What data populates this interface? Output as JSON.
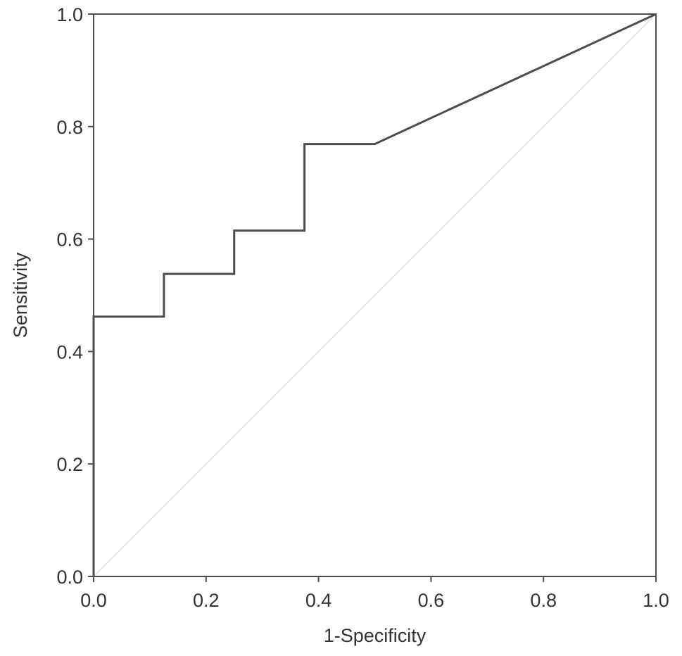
{
  "chart_data": {
    "type": "line",
    "xlabel": "1-Specificity",
    "ylabel": "Sensitivity",
    "xlim": [
      0.0,
      1.0
    ],
    "ylim": [
      0.0,
      1.0
    ],
    "x_ticks": [
      "0.0",
      "0.2",
      "0.4",
      "0.6",
      "0.8",
      "1.0"
    ],
    "y_ticks": [
      "0.0",
      "0.2",
      "0.4",
      "0.6",
      "0.8",
      "1.0"
    ],
    "grid": false,
    "legend": "none",
    "series": [
      {
        "role": "roc-curve",
        "color": "#4d4d4d",
        "x": [
          0.0,
          0.0,
          0.125,
          0.125,
          0.25,
          0.25,
          0.375,
          0.375,
          0.5,
          1.0
        ],
        "y": [
          0.0,
          0.462,
          0.462,
          0.538,
          0.538,
          0.615,
          0.615,
          0.769,
          0.769,
          1.0
        ]
      },
      {
        "role": "reference-diagonal",
        "color": "#d9d9d9",
        "x": [
          0.0,
          1.0
        ],
        "y": [
          0.0,
          1.0
        ]
      }
    ]
  }
}
